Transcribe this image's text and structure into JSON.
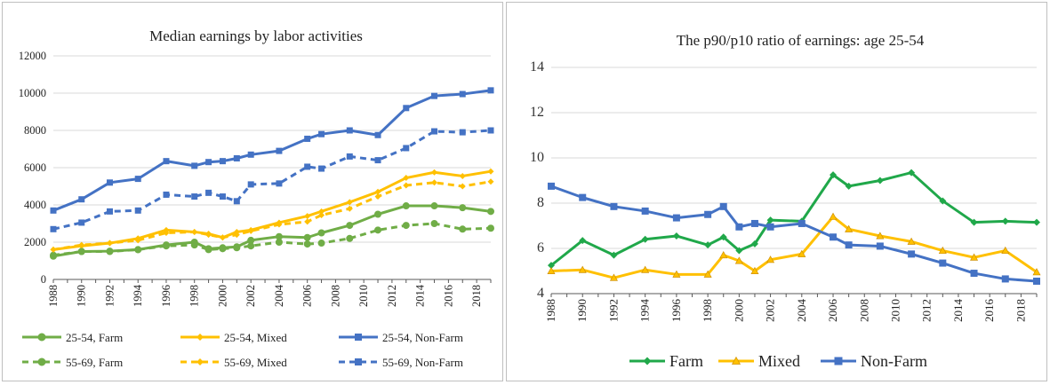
{
  "chart_data": [
    {
      "type": "line",
      "title": "Median earnings by labor activities",
      "ylim": [
        0,
        12000
      ],
      "yticks": [
        0,
        2000,
        4000,
        6000,
        8000,
        10000,
        12000
      ],
      "xticks": [
        1988,
        1990,
        1992,
        1994,
        1996,
        1998,
        2000,
        2002,
        2004,
        2006,
        2008,
        2010,
        2012,
        2014,
        2016,
        2018
      ],
      "xlim": [
        1988,
        2019
      ],
      "grid": "horizontal",
      "legend": "bottom",
      "series": [
        {
          "name": "25-54, Farm",
          "color": "#70AD47",
          "dash": "solid",
          "marker": "circle",
          "x": [
            1988,
            1990,
            1992,
            1994,
            1996,
            1998,
            1999,
            2000,
            2001,
            2002,
            2004,
            2006,
            2007,
            2009,
            2011,
            2013,
            2015,
            2017,
            2019
          ],
          "y": [
            1250,
            1500,
            1520,
            1600,
            1850,
            2000,
            1650,
            1700,
            1750,
            2100,
            2300,
            2250,
            2500,
            2900,
            3500,
            3950,
            3950,
            3850,
            3650
          ]
        },
        {
          "name": "25-54, Mixed",
          "color": "#FFC000",
          "dash": "solid",
          "marker": "diamond",
          "x": [
            1988,
            1990,
            1992,
            1994,
            1996,
            1998,
            1999,
            2000,
            2001,
            2002,
            2004,
            2006,
            2007,
            2009,
            2011,
            2013,
            2015,
            2017,
            2019
          ],
          "y": [
            1600,
            1800,
            1950,
            2200,
            2650,
            2550,
            2450,
            2250,
            2550,
            2650,
            3050,
            3400,
            3650,
            4150,
            4700,
            5450,
            5750,
            5550,
            5800
          ]
        },
        {
          "name": "25-54, Non-Farm",
          "color": "#4472C4",
          "dash": "solid",
          "marker": "square",
          "x": [
            1988,
            1990,
            1992,
            1994,
            1996,
            1998,
            1999,
            2000,
            2001,
            2002,
            2004,
            2006,
            2007,
            2009,
            2011,
            2013,
            2015,
            2017,
            2019
          ],
          "y": [
            3700,
            4300,
            5200,
            5400,
            6350,
            6100,
            6300,
            6350,
            6500,
            6700,
            6900,
            7550,
            7800,
            8000,
            7750,
            9200,
            9850,
            9950,
            10150
          ]
        },
        {
          "name": "55-69, Farm",
          "color": "#70AD47",
          "dash": "dashed",
          "marker": "circle",
          "x": [
            1988,
            1990,
            1992,
            1994,
            1996,
            1998,
            1999,
            2000,
            2001,
            2002,
            2004,
            2006,
            2007,
            2009,
            2011,
            2013,
            2015,
            2017,
            2019
          ],
          "y": [
            1300,
            1500,
            1500,
            1600,
            1800,
            1850,
            1600,
            1650,
            1700,
            1800,
            2000,
            1900,
            1950,
            2200,
            2650,
            2900,
            3000,
            2700,
            2750
          ]
        },
        {
          "name": "55-69, Mixed",
          "color": "#FFC000",
          "dash": "dashed",
          "marker": "diamond",
          "x": [
            1988,
            1990,
            1992,
            1994,
            1996,
            1998,
            1999,
            2000,
            2001,
            2002,
            2004,
            2006,
            2007,
            2009,
            2011,
            2013,
            2015,
            2017,
            2019
          ],
          "y": [
            1600,
            1850,
            1950,
            2100,
            2500,
            2550,
            2400,
            2250,
            2400,
            2600,
            2950,
            3100,
            3450,
            3800,
            4450,
            5050,
            5200,
            5000,
            5250
          ]
        },
        {
          "name": "55-69, Non-Farm",
          "color": "#4472C4",
          "dash": "dashed",
          "marker": "square",
          "x": [
            1988,
            1990,
            1992,
            1994,
            1996,
            1998,
            1999,
            2000,
            2001,
            2002,
            2004,
            2006,
            2007,
            2009,
            2011,
            2013,
            2015,
            2017,
            2019
          ],
          "y": [
            2700,
            3050,
            3650,
            3700,
            4550,
            4450,
            4650,
            4450,
            4200,
            5100,
            5150,
            6050,
            5950,
            6600,
            6400,
            7050,
            7950,
            7900,
            8000
          ]
        }
      ]
    },
    {
      "type": "line",
      "title": "The p90/p10 ratio of earnings: age 25-54",
      "ylim": [
        4,
        14
      ],
      "yticks": [
        4,
        6,
        8,
        10,
        12,
        14
      ],
      "xticks": [
        1988,
        1990,
        1992,
        1994,
        1996,
        1998,
        2000,
        2002,
        2004,
        2006,
        2008,
        2010,
        2012,
        2014,
        2016,
        2018
      ],
      "xlim": [
        1988,
        2019
      ],
      "grid": "horizontal",
      "legend": "bottom",
      "series": [
        {
          "name": "Farm",
          "color": "#20A84A",
          "marker": "diamond",
          "x": [
            1988,
            1990,
            1992,
            1994,
            1996,
            1998,
            1999,
            2000,
            2001,
            2002,
            2004,
            2006,
            2007,
            2009,
            2011,
            2013,
            2015,
            2017,
            2019
          ],
          "y": [
            5.25,
            6.35,
            5.7,
            6.4,
            6.55,
            6.15,
            6.5,
            5.9,
            6.2,
            7.25,
            7.2,
            9.25,
            8.75,
            9.0,
            9.35,
            8.1,
            7.15,
            7.2,
            7.15
          ]
        },
        {
          "name": "Mixed",
          "color": "#FFC000",
          "marker": "triangle",
          "x": [
            1988,
            1990,
            1992,
            1994,
            1996,
            1998,
            1999,
            2000,
            2001,
            2002,
            2004,
            2006,
            2007,
            2009,
            2011,
            2013,
            2015,
            2017,
            2019
          ],
          "y": [
            5.0,
            5.05,
            4.7,
            5.05,
            4.85,
            4.85,
            5.7,
            5.45,
            5.0,
            5.5,
            5.75,
            7.4,
            6.85,
            6.55,
            6.3,
            5.9,
            5.6,
            5.9,
            4.95
          ]
        },
        {
          "name": "Non-Farm",
          "color": "#4472C4",
          "marker": "square",
          "x": [
            1988,
            1990,
            1992,
            1994,
            1996,
            1998,
            1999,
            2000,
            2001,
            2002,
            2004,
            2006,
            2007,
            2009,
            2011,
            2013,
            2015,
            2017,
            2019
          ],
          "y": [
            8.75,
            8.25,
            7.85,
            7.65,
            7.35,
            7.5,
            7.85,
            6.95,
            7.1,
            6.95,
            7.1,
            6.5,
            6.15,
            6.1,
            5.75,
            5.35,
            4.9,
            4.65,
            4.55
          ]
        }
      ]
    }
  ]
}
